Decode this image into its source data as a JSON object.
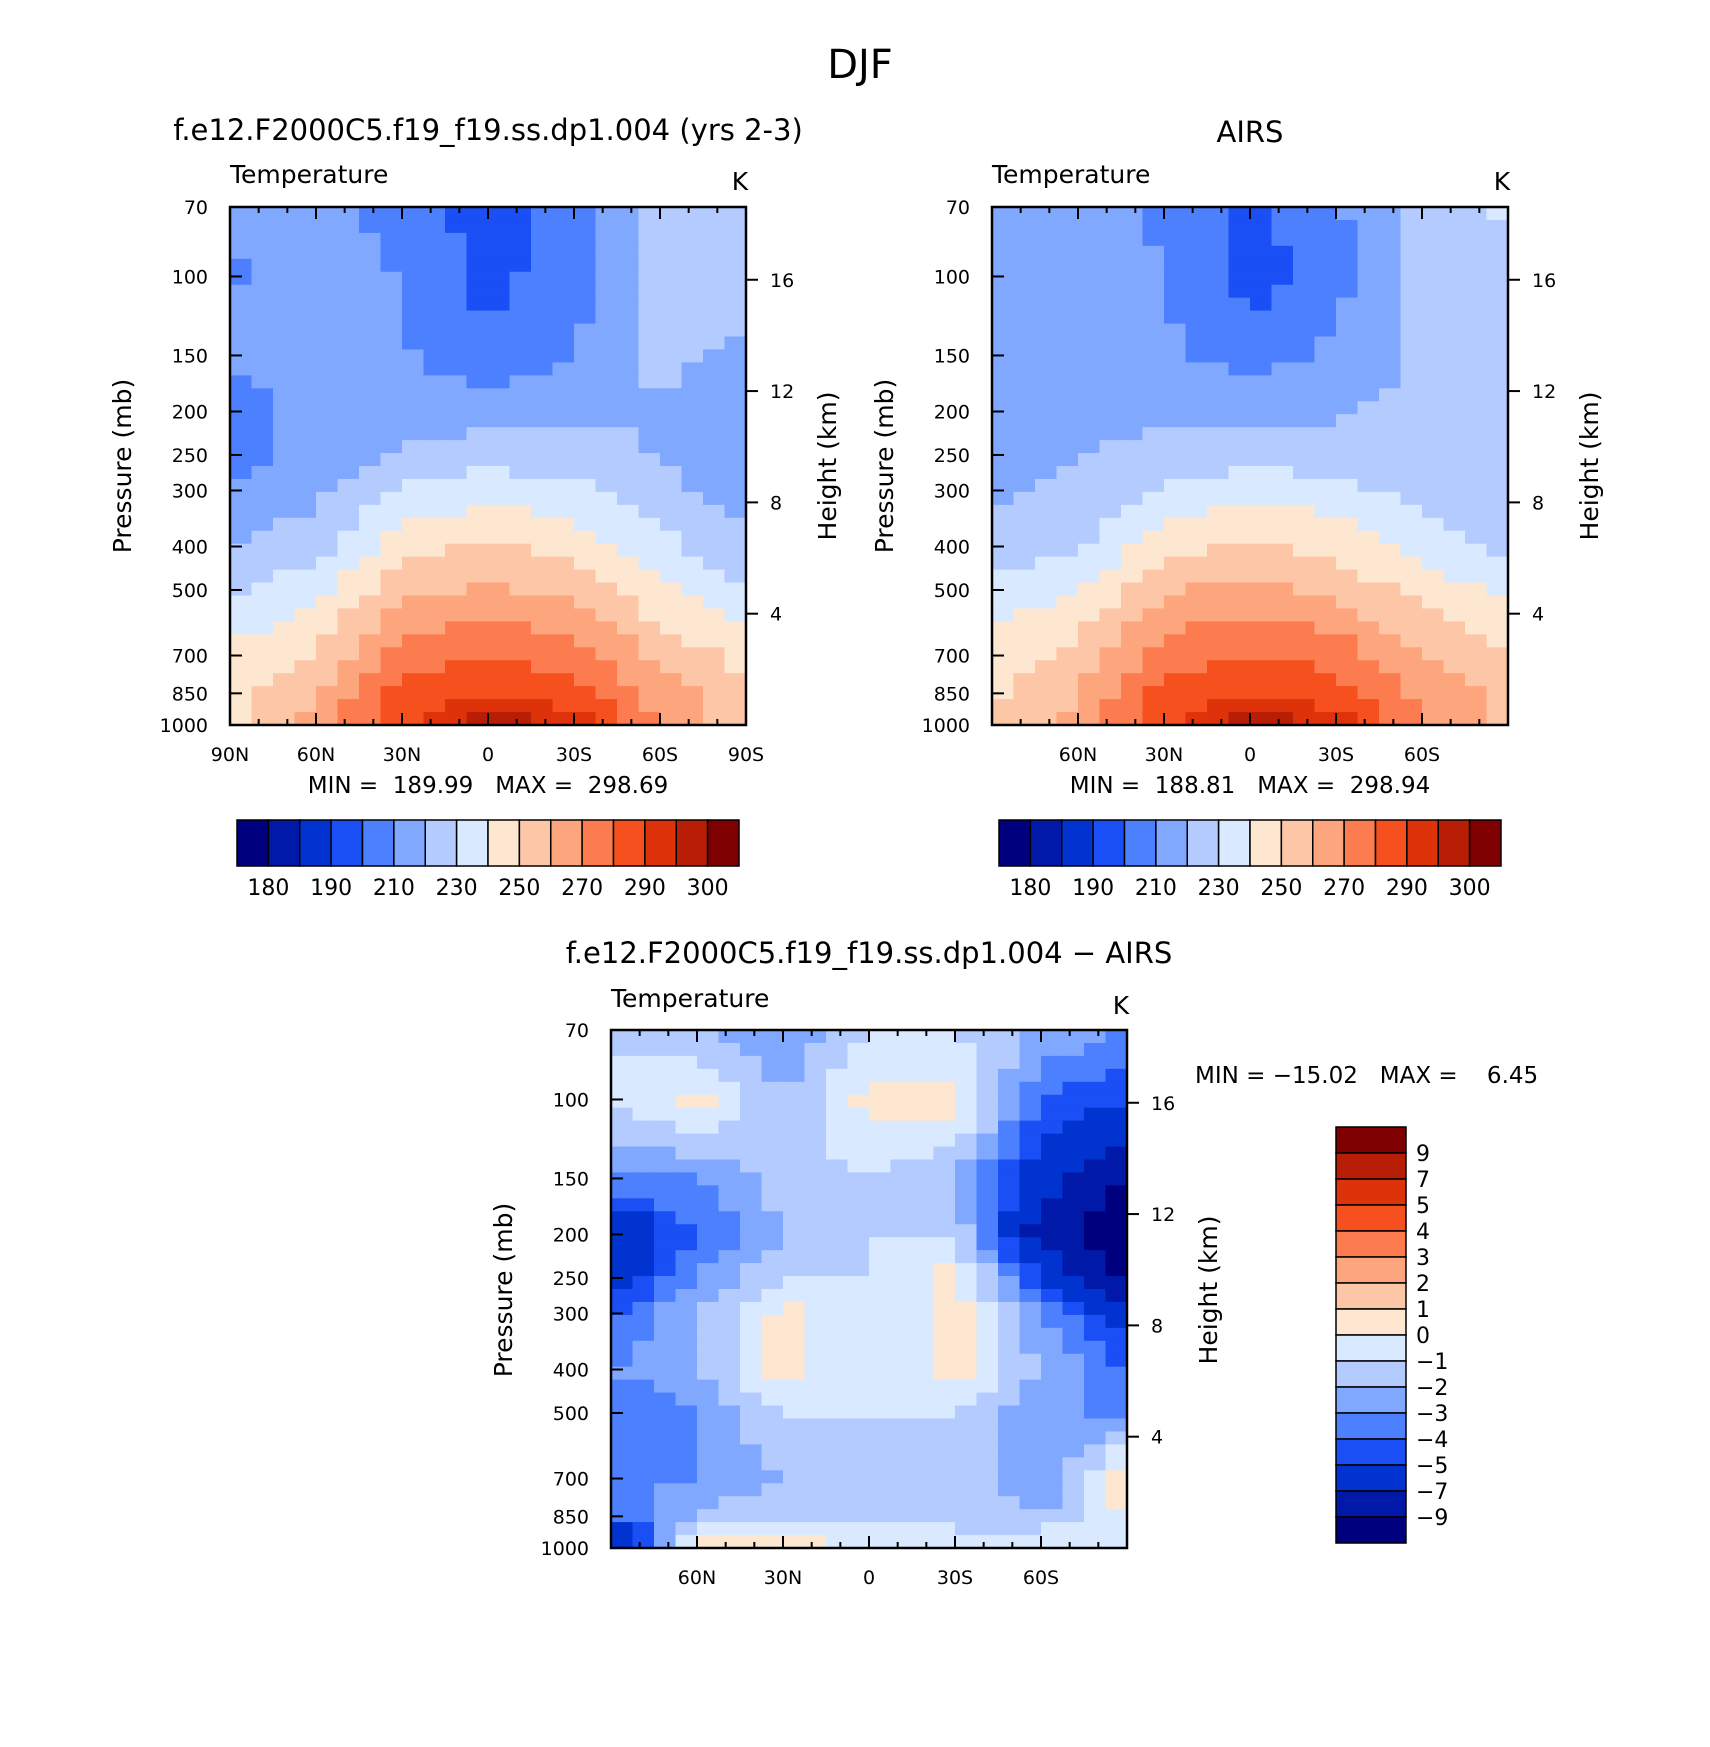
{
  "figure": {
    "season": "DJF"
  },
  "panels": [
    {
      "id": "model",
      "title": "f.e12.F2000C5.f19_f19.ss.dp1.004 (yrs 2-3)",
      "left_string": "Temperature",
      "right_string": "K",
      "stats": "MIN =  189.99   MAX =  298.69",
      "ylabel": "Pressure (mb)",
      "ylabel_right": "Height (km)",
      "lat_ticks": [
        "90N",
        "60N",
        "30N",
        "0",
        "30S",
        "60S",
        "90S"
      ]
    },
    {
      "id": "obs",
      "title": "AIRS",
      "left_string": "Temperature",
      "right_string": "K",
      "stats": "MIN =  188.81   MAX =  298.94",
      "ylabel": "Pressure (mb)",
      "ylabel_right": "Height (km)",
      "lat_ticks": [
        "",
        "60N",
        "30N",
        "0",
        "30S",
        "60S",
        ""
      ]
    },
    {
      "id": "diff",
      "title": "f.e12.F2000C5.f19_f19.ss.dp1.004 − AIRS",
      "left_string": "Temperature",
      "right_string": "K",
      "stats": "MIN = −15.02   MAX =    6.45",
      "ylabel": "Pressure (mb)",
      "ylabel_right": "Height (km)",
      "lat_ticks": [
        "",
        "60N",
        "30N",
        "0",
        "30S",
        "60S",
        ""
      ]
    }
  ],
  "pressure_ticks": [
    "70",
    "100",
    "150",
    "200",
    "250",
    "300",
    "400",
    "500",
    "700",
    "850",
    "1000"
  ],
  "height_ticks": [
    "16",
    "12",
    "8",
    "4"
  ],
  "colorbar_temp": {
    "labels": [
      "180",
      "190",
      "210",
      "230",
      "250",
      "270",
      "290",
      "300"
    ],
    "colors": [
      "#00007f",
      "#0019a8",
      "#0033cf",
      "#1a4ff5",
      "#4c80ff",
      "#80a8ff",
      "#b3cbff",
      "#d9e9ff",
      "#fde7d0",
      "#fdc6a7",
      "#fda57d",
      "#fc7c4f",
      "#f6501e",
      "#de320a",
      "#b81e05",
      "#7f0000"
    ]
  },
  "colorbar_diff": {
    "labels": [
      "9",
      "7",
      "5",
      "4",
      "3",
      "2",
      "1",
      "0",
      "−1",
      "−2",
      "−3",
      "−4",
      "−5",
      "−7",
      "−9"
    ],
    "colors": [
      "#7f0000",
      "#b81e05",
      "#de320a",
      "#f6501e",
      "#fc7c4f",
      "#fda57d",
      "#fdc6a7",
      "#fde7d0",
      "#d9e9ff",
      "#b3cbff",
      "#80a8ff",
      "#4c80ff",
      "#1a4ff5",
      "#0033cf",
      "#0019a8",
      "#00007f"
    ]
  },
  "chart_data": [
    {
      "type": "heatmap",
      "title": "f.e12.F2000C5.f19_f19.ss.dp1.004 (yrs 2-3)",
      "variable": "Temperature",
      "units": "K",
      "xlabel": "",
      "ylabel": "Pressure (mb)",
      "ylabel_right": "Height (km)",
      "x": [
        90,
        60,
        30,
        0,
        -30,
        -60,
        -90
      ],
      "y": [
        70,
        100,
        150,
        200,
        250,
        300,
        400,
        500,
        700,
        850,
        1000
      ],
      "values": [
        [
          211,
          215,
          206,
          195,
          204,
          226,
          229
        ],
        [
          209,
          213,
          210,
          196,
          207,
          225,
          228
        ],
        [
          212,
          214,
          211,
          203,
          209,
          222,
          218
        ],
        [
          205,
          214,
          215,
          216,
          218,
          220,
          214
        ],
        [
          204,
          215,
          221,
          226,
          224,
          219,
          215
        ],
        [
          214,
          217,
          231,
          236,
          233,
          223,
          215
        ],
        [
          219,
          226,
          246,
          252,
          247,
          233,
          222
        ],
        [
          228,
          237,
          257,
          262,
          256,
          242,
          231
        ],
        [
          243,
          251,
          275,
          280,
          274,
          258,
          246
        ],
        [
          246,
          260,
          284,
          289,
          285,
          266,
          252
        ],
        [
          245,
          264,
          290,
          298,
          296,
          267,
          250
        ]
      ],
      "ylim": [
        1000,
        70
      ],
      "stats": {
        "min": 189.99,
        "max": 298.69
      }
    },
    {
      "type": "heatmap",
      "title": "AIRS",
      "variable": "Temperature",
      "units": "K",
      "xlabel": "",
      "ylabel": "Pressure (mb)",
      "ylabel_right": "Height (km)",
      "x": [
        90,
        60,
        30,
        0,
        -30,
        -60,
        -90
      ],
      "y": [
        70,
        100,
        150,
        200,
        250,
        300,
        400,
        500,
        700,
        850,
        1000
      ],
      "values": [
        [
          211,
          217,
          208,
          197,
          208,
          226,
          231
        ],
        [
          212,
          216,
          210,
          195,
          206,
          224,
          228
        ],
        [
          216,
          218,
          212,
          205,
          212,
          222,
          226
        ],
        [
          216,
          218,
          219,
          217,
          219,
          223,
          224
        ],
        [
          218,
          220,
          222,
          226,
          224,
          222,
          224
        ],
        [
          219,
          221,
          231,
          237,
          234,
          226,
          224
        ],
        [
          222,
          228,
          247,
          252,
          247,
          235,
          228
        ],
        [
          233,
          240,
          259,
          263,
          258,
          246,
          238
        ],
        [
          245,
          253,
          275,
          281,
          276,
          260,
          251
        ],
        [
          248,
          260,
          285,
          289,
          285,
          267,
          256
        ],
        [
          249,
          264,
          290,
          298,
          296,
          272,
          253
        ]
      ],
      "ylim": [
        1000,
        70
      ],
      "stats": {
        "min": 188.81,
        "max": 298.94
      }
    },
    {
      "type": "heatmap",
      "title": "f.e12.F2000C5.f19_f19.ss.dp1.004 − AIRS",
      "variable": "Temperature",
      "units": "K",
      "xlabel": "",
      "ylabel": "Pressure (mb)",
      "ylabel_right": "Height (km)",
      "x": [
        90,
        60,
        30,
        0,
        -30,
        -60,
        -90
      ],
      "y": [
        70,
        100,
        150,
        200,
        250,
        300,
        400,
        500,
        700,
        850,
        1000
      ],
      "values": [
        [
          -1,
          -2,
          -3,
          -1,
          -1,
          -2,
          -3
        ],
        [
          -1,
          0.5,
          -2,
          0.5,
          0.5,
          -4,
          -5
        ],
        [
          -3,
          -3,
          -1.5,
          -1,
          -2,
          -6,
          -9
        ],
        [
          -7,
          -4,
          -2,
          -1,
          -1,
          -8,
          -11
        ],
        [
          -6,
          -3,
          -1,
          -1,
          0.5,
          -5,
          -10
        ],
        [
          -4,
          -2,
          0.5,
          -1,
          0.5,
          -3,
          -6
        ],
        [
          -3,
          -2,
          0.5,
          -1,
          0.5,
          -2,
          -4
        ],
        [
          -4,
          -3,
          -1,
          -1,
          -1,
          -3,
          -3
        ],
        [
          -3,
          -3,
          -2,
          -1,
          -1,
          -3,
          1
        ],
        [
          -4,
          -2,
          -1,
          -1,
          -1,
          -2,
          0
        ],
        [
          -9,
          1,
          0.5,
          0,
          -1,
          0.5,
          0
        ]
      ],
      "ylim": [
        1000,
        70
      ],
      "stats": {
        "min": -15.02,
        "max": 6.45
      }
    }
  ]
}
